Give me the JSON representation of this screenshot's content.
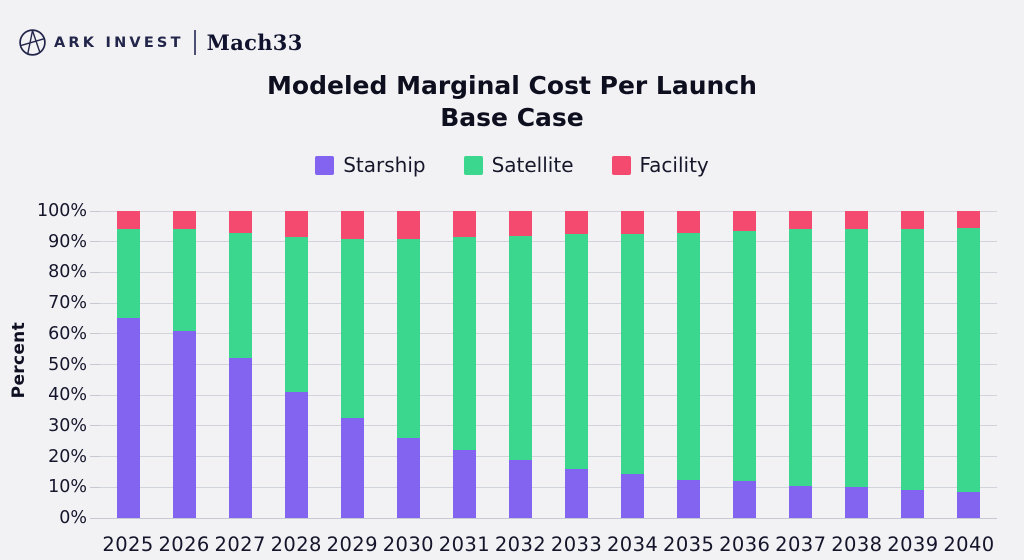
{
  "page": {
    "background": "#F2F2F5"
  },
  "header": {
    "brand_primary": "ARK INVEST",
    "brand_secondary": "Mach33",
    "logo_icon": "ark-globe-icon"
  },
  "title": {
    "line1": "Modeled Marginal Cost Per Launch",
    "line2": "Base Case"
  },
  "chart_data": {
    "type": "bar",
    "stacked": true,
    "title": "Modeled Marginal Cost Per Launch",
    "subtitle": "Base Case",
    "xlabel": "",
    "ylabel": "Percent",
    "ylim": [
      0,
      100
    ],
    "grid": true,
    "legend_position": "top",
    "y_tick_labels": [
      "0%",
      "10%",
      "20%",
      "30%",
      "40%",
      "50%",
      "60%",
      "70%",
      "80%",
      "90%",
      "100%"
    ],
    "categories": [
      "2025",
      "2026",
      "2027",
      "2028",
      "2029",
      "2030",
      "2031",
      "2032",
      "2033",
      "2034",
      "2035",
      "2036",
      "2037",
      "2038",
      "2039",
      "2040"
    ],
    "series": [
      {
        "name": "Starship",
        "color": "#8264F0",
        "values": [
          65,
          61,
          52,
          41,
          32.5,
          26,
          22,
          19,
          16,
          14.5,
          12.5,
          12,
          10.5,
          10,
          9,
          8.5
        ]
      },
      {
        "name": "Satellite",
        "color": "#3BD78F",
        "values": [
          29,
          33,
          41,
          50.5,
          58.5,
          65,
          69.5,
          73,
          76.5,
          78,
          80.5,
          81.5,
          83.5,
          84,
          85,
          86
        ]
      },
      {
        "name": "Facility",
        "color": "#F54A6F",
        "values": [
          6,
          6,
          7,
          8.5,
          9,
          9,
          8.5,
          8,
          7.5,
          7.5,
          7,
          6.5,
          6,
          6,
          6,
          5.5
        ]
      }
    ]
  },
  "colors": {
    "text": "#14152A",
    "grid": "#D2D4DC",
    "background": "#F2F2F5"
  }
}
